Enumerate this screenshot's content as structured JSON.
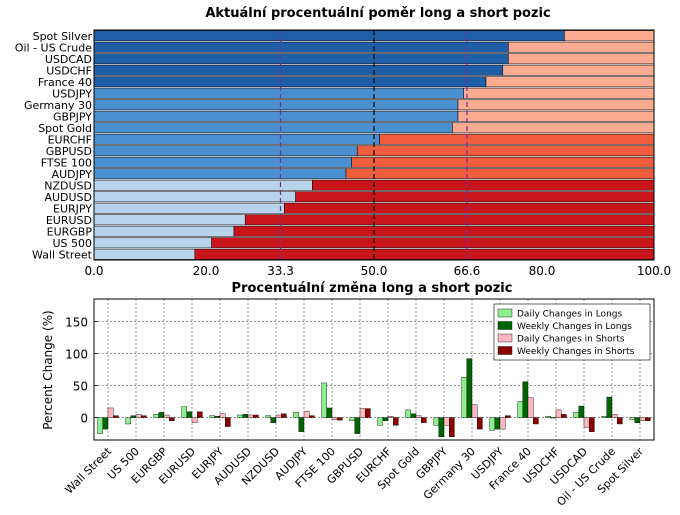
{
  "chart_data": [
    {
      "type": "bar",
      "orientation": "horizontal",
      "stacked": true,
      "title": "Aktuální procentuální poměr long a short pozic",
      "xlim": [
        0,
        100
      ],
      "xticks": [
        "0.0",
        "20.0",
        "33.3",
        "50.0",
        "66.6",
        "80.0",
        "100.0"
      ],
      "reference_lines": [
        33.3,
        50.0,
        66.6
      ],
      "categories": [
        "Spot Silver",
        "Oil - US Crude",
        "USDCAD",
        "USDCHF",
        "France 40",
        "USDJPY",
        "Germany 30",
        "GBPJPY",
        "Spot Gold",
        "EURCHF",
        "GBPUSD",
        "FTSE 100",
        "AUDJPY",
        "NZDUSD",
        "AUDUSD",
        "EURJPY",
        "EURUSD",
        "EURGBP",
        "US 500",
        "Wall Street"
      ],
      "long_percent": [
        84,
        74,
        74,
        73,
        70,
        66,
        65,
        65,
        64,
        51,
        47,
        46,
        45,
        39,
        36,
        34,
        27,
        25,
        21,
        18
      ],
      "colors": {
        "long_dark": "#1f5fa8",
        "long_mid": "#4a90d0",
        "long_light": "#b8d4ec",
        "short_light": "#fcab93",
        "short_mid": "#f05c3e",
        "short_dark": "#c8141b",
        "ref_33": "#7b2d8e",
        "ref_50": "#000000",
        "ref_66": "#7b2d8e"
      }
    },
    {
      "type": "bar",
      "title": "Procentuální změna long a short pozic",
      "ylabel": "Percent Change (%)",
      "ylim": [
        -35,
        185
      ],
      "yticks": [
        "0",
        "50",
        "100",
        "150"
      ],
      "categories": [
        "Wall Street",
        "US 500",
        "EURGBP",
        "EURUSD",
        "EURJPY",
        "AUDUSD",
        "NZDUSD",
        "AUDJPY",
        "FTSE 100",
        "GBPUSD",
        "EURCHF",
        "Spot Gold",
        "GBPJPY",
        "Germany 30",
        "USDJPY",
        "France 40",
        "USDCHF",
        "USDCAD",
        "Oil - US Crude",
        "Spot Silver"
      ],
      "legend_position": "top-right",
      "series": [
        {
          "name": "Daily Changes in Longs",
          "color": "#90ee90",
          "values": [
            -25,
            -10,
            5,
            17,
            3,
            4,
            3,
            8,
            54,
            -5,
            -12,
            12,
            -12,
            63,
            -20,
            25,
            2,
            8,
            2,
            -3
          ]
        },
        {
          "name": "Weekly Changes in Longs",
          "color": "#006400",
          "values": [
            -18,
            3,
            8,
            9,
            2,
            5,
            -8,
            -22,
            15,
            -25,
            -5,
            6,
            -30,
            92,
            -18,
            56,
            0,
            18,
            32,
            -8
          ]
        },
        {
          "name": "Daily Changes in Shorts",
          "color": "#ffb6c1",
          "values": [
            15,
            5,
            4,
            -8,
            6,
            4,
            4,
            10,
            -3,
            14,
            2,
            3,
            -12,
            20,
            -18,
            31,
            12,
            -15,
            5,
            -5
          ]
        },
        {
          "name": "Weekly Changes in Shorts",
          "color": "#8b0000",
          "values": [
            3,
            3,
            -5,
            9,
            -14,
            4,
            6,
            3,
            -4,
            14,
            -12,
            -8,
            -30,
            -18,
            3,
            -10,
            5,
            -22,
            -10,
            -5
          ]
        }
      ]
    }
  ]
}
